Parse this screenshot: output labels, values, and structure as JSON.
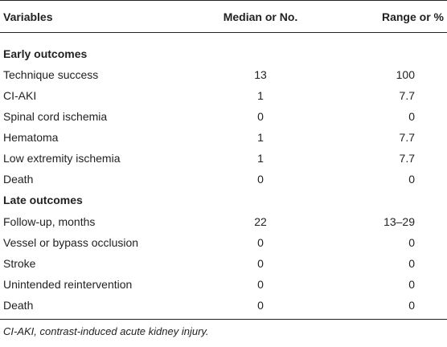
{
  "table": {
    "headers": [
      "Variables",
      "Median or No.",
      "Range or %"
    ],
    "sections": [
      {
        "title": "Early outcomes",
        "rows": [
          [
            "Technique success",
            "13",
            "100"
          ],
          [
            "CI-AKI",
            "1",
            "7.7"
          ],
          [
            "Spinal cord ischemia",
            "0",
            "0"
          ],
          [
            "Hematoma",
            "1",
            "7.7"
          ],
          [
            "Low extremity ischemia",
            "1",
            "7.7"
          ],
          [
            "Death",
            "0",
            "0"
          ]
        ]
      },
      {
        "title": "Late outcomes",
        "rows": [
          [
            "Follow-up, months",
            "22",
            "13–29"
          ],
          [
            "Vessel or bypass occlusion",
            "0",
            "0"
          ],
          [
            "Stroke",
            "0",
            "0"
          ],
          [
            "Unintended reintervention",
            "0",
            "0"
          ],
          [
            "Death",
            "0",
            "0"
          ]
        ]
      }
    ],
    "footnote": "CI-AKI, contrast-induced acute kidney injury."
  }
}
